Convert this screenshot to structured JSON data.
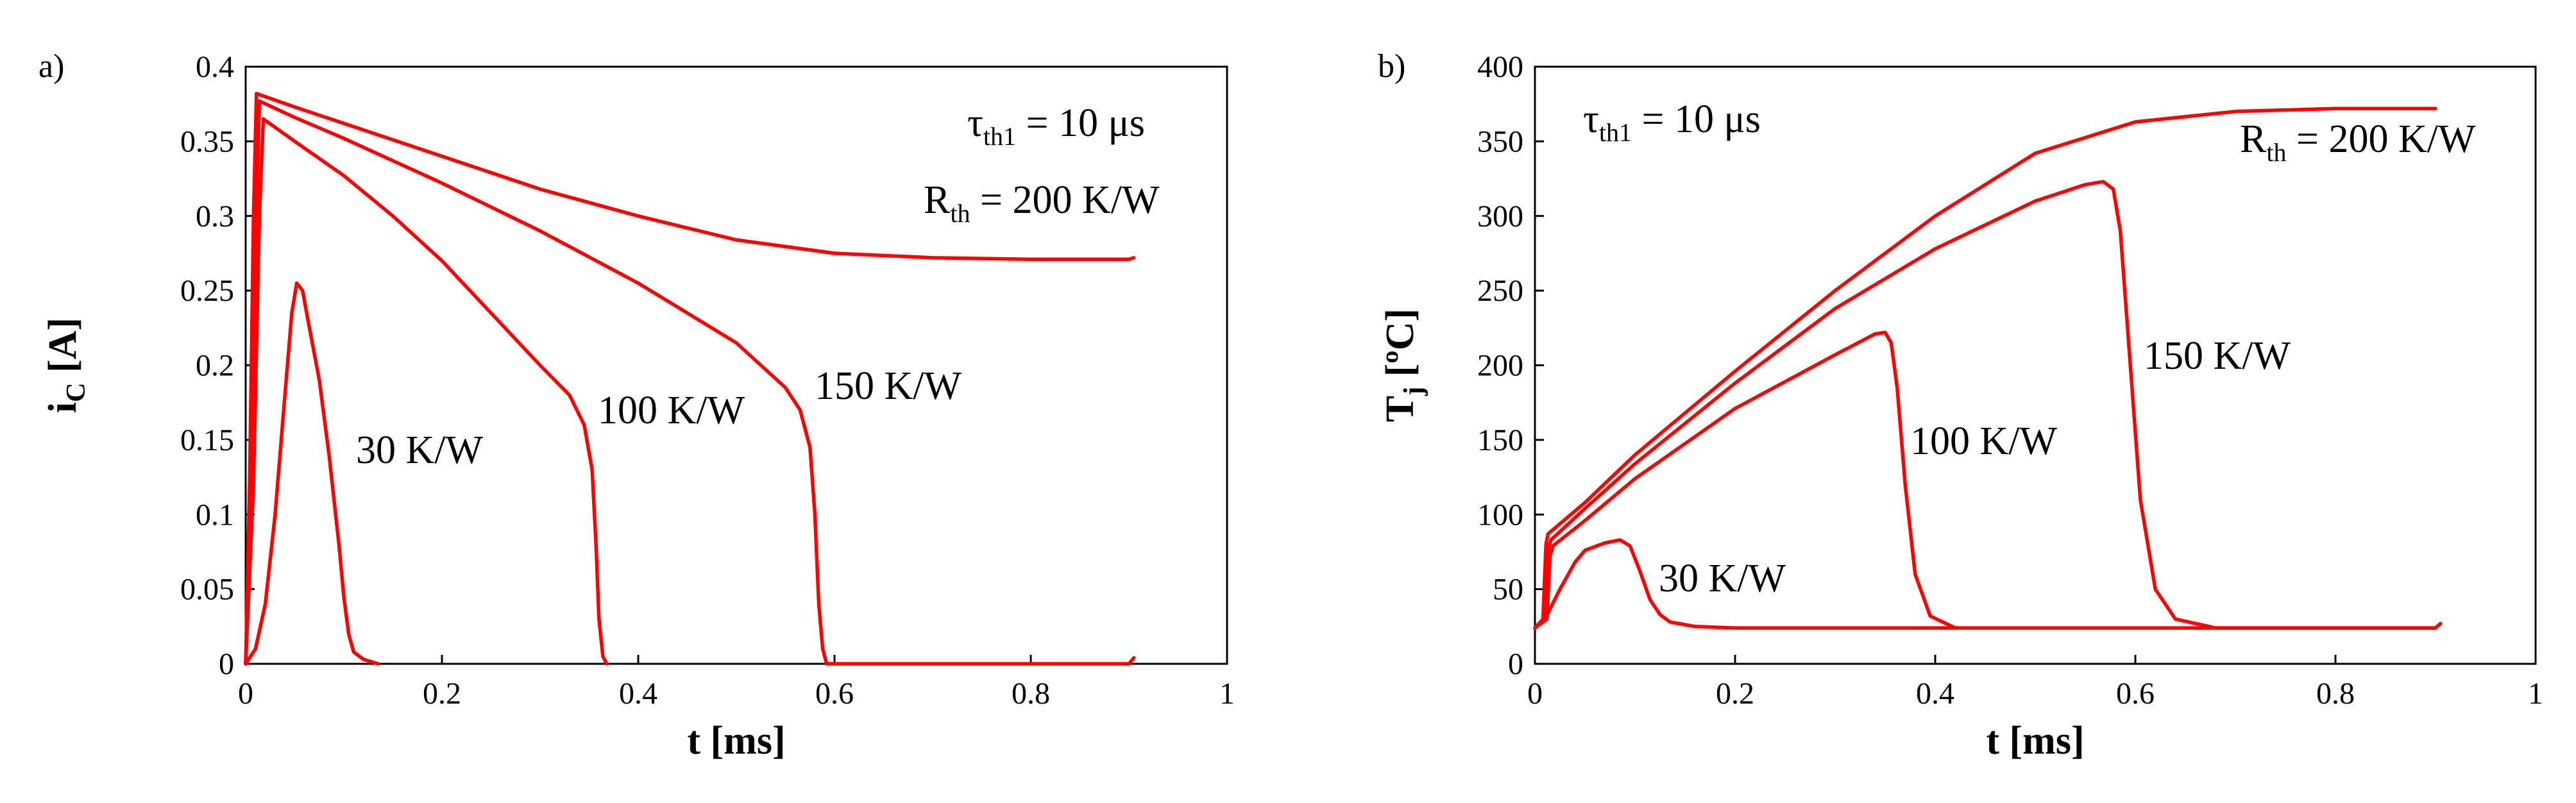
{
  "chart_data": [
    {
      "type": "line",
      "panel_label": "a)",
      "xlabel": "t [ms]",
      "ylabel": "i",
      "ylabel_sub": "C",
      "ylabel_unit": " [A]",
      "xlim": [
        0,
        1
      ],
      "ylim": [
        0,
        0.4
      ],
      "xticks": [
        "0",
        "0.2",
        "0.4",
        "0.6",
        "0.8",
        "1"
      ],
      "yticks": [
        "0",
        "0.05",
        "0.1",
        "0.15",
        "0.2",
        "0.25",
        "0.3",
        "0.35",
        "0.4"
      ],
      "series_color": "#ff0000",
      "series": [
        {
          "name": "Rth = 200 K/W",
          "points": [
            [
              0,
              0
            ],
            [
              0.004,
              0.12
            ],
            [
              0.008,
              0.3
            ],
            [
              0.011,
              0.382
            ],
            [
              0.05,
              0.373
            ],
            [
              0.1,
              0.362
            ],
            [
              0.2,
              0.34
            ],
            [
              0.3,
              0.318
            ],
            [
              0.4,
              0.3
            ],
            [
              0.5,
              0.284
            ],
            [
              0.6,
              0.275
            ],
            [
              0.7,
              0.272
            ],
            [
              0.8,
              0.271
            ],
            [
              0.9,
              0.271
            ],
            [
              0.905,
              0.272
            ]
          ]
        },
        {
          "name": "150 K/W",
          "points": [
            [
              0,
              0
            ],
            [
              0.006,
              0.12
            ],
            [
              0.011,
              0.3
            ],
            [
              0.014,
              0.377
            ],
            [
              0.05,
              0.366
            ],
            [
              0.1,
              0.352
            ],
            [
              0.2,
              0.322
            ],
            [
              0.3,
              0.29
            ],
            [
              0.4,
              0.255
            ],
            [
              0.5,
              0.215
            ],
            [
              0.55,
              0.185
            ],
            [
              0.565,
              0.17
            ],
            [
              0.575,
              0.145
            ],
            [
              0.58,
              0.1
            ],
            [
              0.584,
              0.04
            ],
            [
              0.588,
              0.01
            ],
            [
              0.592,
              0
            ],
            [
              0.9,
              0
            ],
            [
              0.905,
              0.004
            ]
          ]
        },
        {
          "name": "100 K/W",
          "points": [
            [
              0,
              0
            ],
            [
              0.008,
              0.12
            ],
            [
              0.014,
              0.3
            ],
            [
              0.018,
              0.365
            ],
            [
              0.05,
              0.35
            ],
            [
              0.1,
              0.327
            ],
            [
              0.15,
              0.3
            ],
            [
              0.2,
              0.27
            ],
            [
              0.25,
              0.235
            ],
            [
              0.3,
              0.2
            ],
            [
              0.33,
              0.18
            ],
            [
              0.345,
              0.16
            ],
            [
              0.353,
              0.13
            ],
            [
              0.357,
              0.08
            ],
            [
              0.36,
              0.03
            ],
            [
              0.364,
              0.005
            ],
            [
              0.368,
              0
            ]
          ]
        },
        {
          "name": "30 K/W",
          "points": [
            [
              0,
              0
            ],
            [
              0.01,
              0.01
            ],
            [
              0.02,
              0.04
            ],
            [
              0.03,
              0.1
            ],
            [
              0.04,
              0.18
            ],
            [
              0.047,
              0.235
            ],
            [
              0.052,
              0.255
            ],
            [
              0.058,
              0.25
            ],
            [
              0.065,
              0.225
            ],
            [
              0.075,
              0.19
            ],
            [
              0.085,
              0.14
            ],
            [
              0.095,
              0.08
            ],
            [
              0.1,
              0.045
            ],
            [
              0.105,
              0.02
            ],
            [
              0.11,
              0.008
            ],
            [
              0.12,
              0.003
            ],
            [
              0.135,
              0
            ]
          ]
        }
      ],
      "annotations": {
        "tau": {
          "main": "τ",
          "sub": "th1",
          "rest": " = 10 μs"
        },
        "rth": {
          "main": "R",
          "sub": "th",
          "rest": " = 200 K/W"
        },
        "k150": "150 K/W",
        "k100": "100 K/W",
        "k30": "30 K/W"
      }
    },
    {
      "type": "line",
      "panel_label": "b)",
      "xlabel": "t [ms]",
      "ylabel": "T",
      "ylabel_sub": "j",
      "ylabel_unit": " [ºC]",
      "xlim": [
        0,
        1
      ],
      "ylim": [
        0,
        400
      ],
      "xticks": [
        "0",
        "0.2",
        "0.4",
        "0.6",
        "0.8",
        "1"
      ],
      "yticks": [
        "0",
        "50",
        "100",
        "150",
        "200",
        "250",
        "300",
        "350",
        "400"
      ],
      "series_color": "#ff0000",
      "series": [
        {
          "name": "Rth = 200 K/W",
          "points": [
            [
              0,
              24
            ],
            [
              0.008,
              30
            ],
            [
              0.011,
              80
            ],
            [
              0.013,
              87
            ],
            [
              0.05,
              108
            ],
            [
              0.1,
              140
            ],
            [
              0.2,
              196
            ],
            [
              0.3,
              250
            ],
            [
              0.4,
              300
            ],
            [
              0.5,
              342
            ],
            [
              0.6,
              363
            ],
            [
              0.7,
              370
            ],
            [
              0.8,
              372
            ],
            [
              0.9,
              372
            ]
          ]
        },
        {
          "name": "150 K/W",
          "points": [
            [
              0,
              24
            ],
            [
              0.01,
              30
            ],
            [
              0.013,
              76
            ],
            [
              0.016,
              83
            ],
            [
              0.05,
              104
            ],
            [
              0.1,
              134
            ],
            [
              0.2,
              188
            ],
            [
              0.3,
              238
            ],
            [
              0.4,
              278
            ],
            [
              0.5,
              310
            ],
            [
              0.55,
              321
            ],
            [
              0.568,
              323
            ],
            [
              0.578,
              318
            ],
            [
              0.585,
              290
            ],
            [
              0.595,
              200
            ],
            [
              0.605,
              110
            ],
            [
              0.62,
              50
            ],
            [
              0.64,
              30
            ],
            [
              0.68,
              24
            ],
            [
              0.9,
              24
            ],
            [
              0.905,
              27
            ]
          ]
        },
        {
          "name": "100 K/W",
          "points": [
            [
              0,
              24
            ],
            [
              0.012,
              30
            ],
            [
              0.015,
              72
            ],
            [
              0.018,
              79
            ],
            [
              0.05,
              96
            ],
            [
              0.1,
              124
            ],
            [
              0.2,
              171
            ],
            [
              0.3,
              207
            ],
            [
              0.34,
              221
            ],
            [
              0.35,
              222
            ],
            [
              0.356,
              215
            ],
            [
              0.362,
              185
            ],
            [
              0.37,
              120
            ],
            [
              0.38,
              60
            ],
            [
              0.395,
              32
            ],
            [
              0.42,
              24
            ]
          ]
        },
        {
          "name": "30 K/W",
          "points": [
            [
              0,
              24
            ],
            [
              0.01,
              30
            ],
            [
              0.025,
              50
            ],
            [
              0.04,
              68
            ],
            [
              0.05,
              76
            ],
            [
              0.07,
              81
            ],
            [
              0.085,
              83
            ],
            [
              0.095,
              79
            ],
            [
              0.105,
              62
            ],
            [
              0.115,
              43
            ],
            [
              0.125,
              33
            ],
            [
              0.135,
              28
            ],
            [
              0.16,
              25
            ],
            [
              0.2,
              24
            ],
            [
              0.9,
              24
            ]
          ]
        }
      ],
      "annotations": {
        "tau": {
          "main": "τ",
          "sub": "th1",
          "rest": " = 10 μs"
        },
        "rth": {
          "main": "R",
          "sub": "th",
          "rest": " = 200 K/W"
        },
        "k150": "150 K/W",
        "k100": "100 K/W",
        "k30": "30 K/W"
      }
    }
  ]
}
